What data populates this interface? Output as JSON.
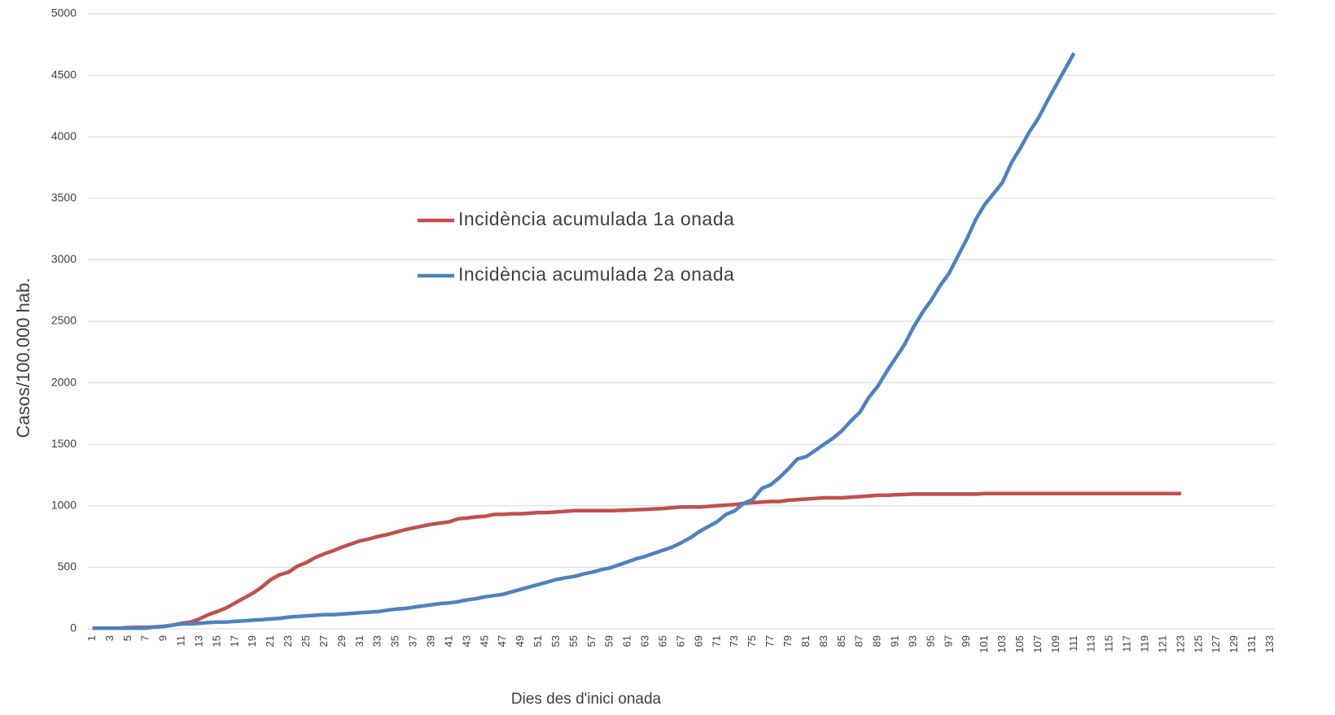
{
  "chart_data": {
    "type": "line",
    "x_label": "Dies des d'inici onada",
    "y_label": "Casos/100.000 hab.",
    "categories": [
      1,
      null,
      3,
      null,
      5,
      null,
      7,
      null,
      9,
      null,
      11,
      null,
      13,
      null,
      15,
      null,
      17,
      null,
      19,
      null,
      21,
      null,
      23,
      null,
      25,
      null,
      27,
      null,
      29,
      null,
      31,
      null,
      33,
      null,
      35,
      null,
      37,
      null,
      39,
      null,
      41,
      null,
      43,
      null,
      45,
      null,
      47,
      null,
      49,
      null,
      51,
      null,
      53,
      null,
      55,
      null,
      57,
      null,
      59,
      null,
      61,
      null,
      63,
      null,
      65,
      null,
      67,
      null,
      69,
      null,
      71,
      null,
      73,
      null,
      75,
      null,
      77,
      null,
      79,
      null,
      81,
      null,
      83,
      null,
      85,
      null,
      87,
      null,
      89,
      null,
      91,
      null,
      93,
      null,
      95,
      null,
      97,
      null,
      99,
      null,
      101,
      null,
      103,
      null,
      105,
      null,
      107,
      null,
      109,
      null,
      111,
      null,
      113,
      null,
      115,
      null,
      117,
      null,
      119,
      null,
      121,
      null,
      123,
      null,
      125,
      null,
      127,
      null,
      129,
      null,
      131,
      null,
      133
    ],
    "series": [
      {
        "name": "Incidència acumulada 1a onada",
        "color": "#c0504d",
        "values": [
          5,
          5,
          5,
          5,
          10,
          12,
          12,
          15,
          20,
          30,
          45,
          55,
          80,
          115,
          140,
          170,
          210,
          250,
          290,
          340,
          400,
          440,
          460,
          510,
          540,
          580,
          610,
          635,
          665,
          690,
          715,
          730,
          750,
          765,
          785,
          805,
          820,
          835,
          850,
          860,
          870,
          895,
          900,
          910,
          915,
          930,
          930,
          935,
          935,
          940,
          945,
          945,
          950,
          955,
          960,
          960,
          960,
          960,
          960,
          962,
          965,
          968,
          970,
          975,
          978,
          985,
          990,
          990,
          990,
          995,
          1000,
          1005,
          1010,
          1020,
          1025,
          1030,
          1035,
          1035,
          1045,
          1050,
          1055,
          1060,
          1065,
          1065,
          1065,
          1070,
          1075,
          1080,
          1085,
          1085,
          1090,
          1092,
          1095,
          1095,
          1095,
          1095,
          1095,
          1095,
          1095,
          1095,
          1100,
          1100,
          1100,
          1100,
          1100,
          1100,
          1100,
          1100,
          1100,
          1100,
          1100,
          1100,
          1100,
          1100,
          1100,
          1100,
          1100,
          1100,
          1100,
          1100,
          1100,
          1100,
          1100,
          null,
          null,
          null,
          null,
          null,
          null,
          null,
          null,
          null,
          null
        ]
      },
      {
        "name": "Incidència acumulada 2a onada",
        "color": "#4f81bd",
        "values": [
          5,
          5,
          5,
          5,
          5,
          5,
          5,
          15,
          20,
          30,
          40,
          40,
          45,
          50,
          55,
          55,
          60,
          65,
          70,
          75,
          80,
          85,
          95,
          100,
          105,
          110,
          115,
          115,
          120,
          125,
          130,
          135,
          140,
          150,
          160,
          165,
          175,
          185,
          195,
          205,
          210,
          220,
          235,
          245,
          260,
          270,
          280,
          300,
          320,
          340,
          360,
          380,
          400,
          415,
          425,
          445,
          460,
          480,
          495,
          520,
          545,
          570,
          590,
          615,
          640,
          665,
          700,
          740,
          790,
          830,
          870,
          930,
          960,
          1020,
          1050,
          1140,
          1170,
          1230,
          1300,
          1380,
          1400,
          1450,
          1500,
          1550,
          1610,
          1690,
          1760,
          1880,
          1970,
          2090,
          2200,
          2310,
          2450,
          2570,
          2670,
          2790,
          2890,
          3030,
          3170,
          3330,
          3450,
          3540,
          3630,
          3790,
          3910,
          4040,
          4150,
          4290,
          4420,
          4550,
          4680,
          null,
          null,
          null,
          null,
          null,
          null,
          null,
          null,
          null,
          null,
          null,
          null,
          null,
          null,
          null,
          null,
          null,
          null,
          null,
          null,
          null,
          null
        ]
      }
    ],
    "ylim": [
      0,
      5000
    ],
    "yticks": [
      0,
      500,
      1000,
      1500,
      2000,
      2500,
      3000,
      3500,
      4000,
      4500,
      5000
    ],
    "grid": true
  }
}
